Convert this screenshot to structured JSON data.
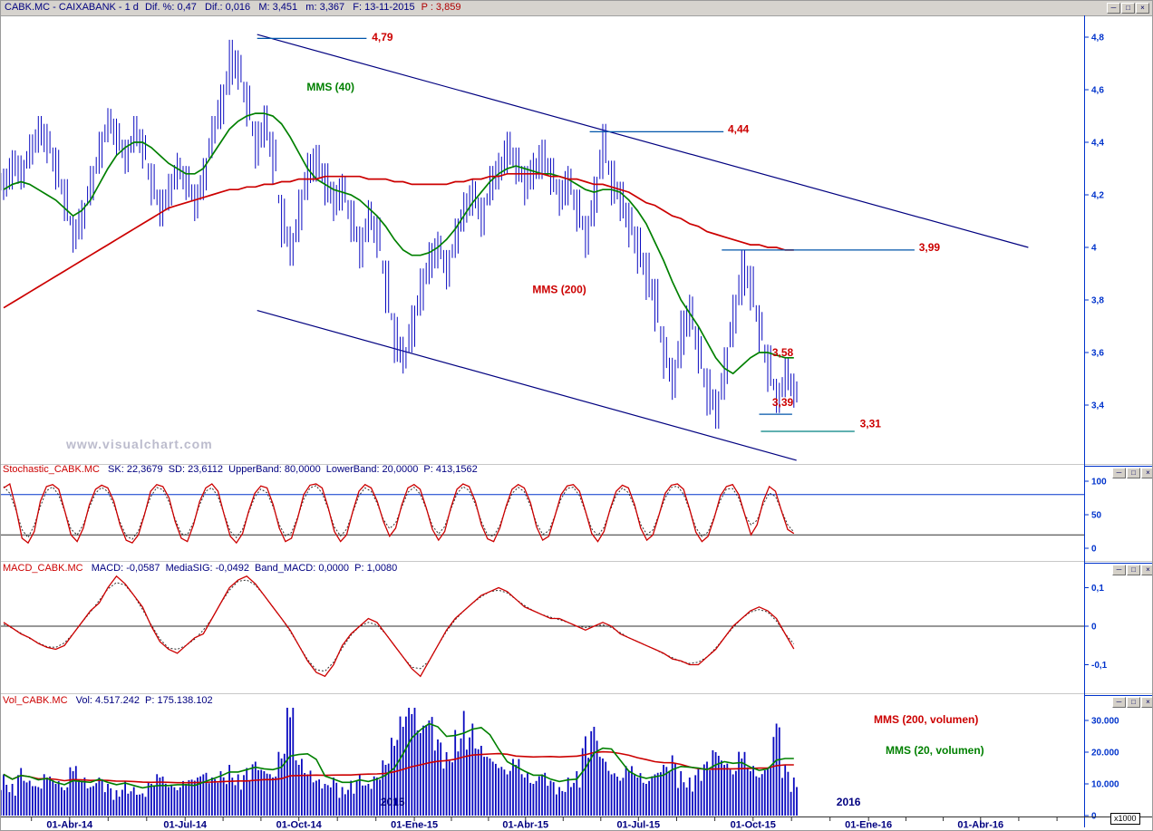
{
  "window": {
    "title_symbol": "CABK.MC - CAIXABANK -  1 d",
    "title_fields": "Dif. %: 0,47   Dif.: 0,016   M: 3,451   m: 3,367   F: 13-11-2015",
    "title_price": "P : 3,859",
    "icons": {
      "minimize": "─",
      "restore": "□",
      "close": "×"
    }
  },
  "watermark": "www.visualchart.com",
  "panels": {
    "stochastic": {
      "label": "Stochastic_CABK.MC",
      "values": "SK: 22,3679  SD: 23,6112  UpperBand: 80,0000  LowerBand: 20,0000  P: 413,1562"
    },
    "macd": {
      "label": "MACD_CABK.MC",
      "values": "MACD: -0,0587  MediaSIG: -0,0492  Band_MACD: 0,0000  P: 1,0080"
    },
    "volume": {
      "label": "Vol_CABK.MC",
      "values": "Vol: 4.517.242  P: 175.138.102",
      "legend_red": "MMS (200, volumen)",
      "legend_green": "MMS (20, volumen)"
    }
  },
  "xaxis": {
    "month_labels": [
      {
        "text": "01-Abr-14",
        "week": 7.6
      },
      {
        "text": "01-Jul-14",
        "week": 20.9
      },
      {
        "text": "01-Oct-14",
        "week": 34.0
      },
      {
        "text": "01-Ene-15",
        "week": 47.3
      },
      {
        "text": "01-Abr-15",
        "week": 60.1
      },
      {
        "text": "01-Jul-15",
        "week": 73.1
      },
      {
        "text": "01-Oct-15",
        "week": 86.3
      },
      {
        "text": "01-Ene-16",
        "week": 99.6
      },
      {
        "text": "01-Abr-16",
        "week": 112.5
      }
    ],
    "year_labels": [
      {
        "text": "2015",
        "week": 44.8
      },
      {
        "text": "2016",
        "week": 97.3
      }
    ],
    "scale_note": "x1000"
  },
  "colors": {
    "navy": "#000080",
    "scale_blue": "#0033cc",
    "bar_blue": "#0a0ac0",
    "red": "#cc0000",
    "green": "#008000",
    "teal": "#008080",
    "annot_line_blue": "#0055aa",
    "signal_dark": "#303030",
    "titlebar_bg": "#d6d3ce",
    "watermark_gray": "#bcbccd"
  },
  "chart_data": [
    {
      "type": "candlestick",
      "name": "CABK.MC daily price",
      "sampling": "weekly estimates [high, low, close]",
      "ylim": [
        3.25,
        4.85
      ],
      "yticks": [
        {
          "v": 4.8,
          "label": "4,8"
        },
        {
          "v": 4.6,
          "label": "4,6"
        },
        {
          "v": 4.4,
          "label": "4,4"
        },
        {
          "v": 4.2,
          "label": "4,2"
        },
        {
          "v": 4.0,
          "label": "4"
        },
        {
          "v": 3.8,
          "label": "3,8"
        },
        {
          "v": 3.6,
          "label": "3,6"
        },
        {
          "v": 3.4,
          "label": "3,4"
        }
      ],
      "bars_hlc": [
        [
          4.3,
          4.18,
          4.25
        ],
        [
          4.37,
          4.22,
          4.32
        ],
        [
          4.35,
          4.22,
          4.28
        ],
        [
          4.43,
          4.3,
          4.38
        ],
        [
          4.5,
          4.36,
          4.45
        ],
        [
          4.47,
          4.32,
          4.4
        ],
        [
          4.38,
          4.22,
          4.3
        ],
        [
          4.26,
          4.1,
          4.18
        ],
        [
          4.12,
          3.98,
          4.05
        ],
        [
          4.18,
          4.03,
          4.12
        ],
        [
          4.31,
          4.16,
          4.25
        ],
        [
          4.44,
          4.28,
          4.38
        ],
        [
          4.53,
          4.4,
          4.48
        ],
        [
          4.49,
          4.35,
          4.42
        ],
        [
          4.41,
          4.28,
          4.35
        ],
        [
          4.5,
          4.36,
          4.45
        ],
        [
          4.45,
          4.3,
          4.38
        ],
        [
          4.32,
          4.16,
          4.25
        ],
        [
          4.22,
          4.08,
          4.15
        ],
        [
          4.28,
          4.14,
          4.22
        ],
        [
          4.36,
          4.22,
          4.3
        ],
        [
          4.31,
          4.18,
          4.25
        ],
        [
          4.24,
          4.1,
          4.18
        ],
        [
          4.34,
          4.18,
          4.28
        ],
        [
          4.5,
          4.34,
          4.45
        ],
        [
          4.62,
          4.45,
          4.55
        ],
        [
          4.79,
          4.58,
          4.72
        ],
        [
          4.75,
          4.6,
          4.68
        ],
        [
          4.63,
          4.46,
          4.55
        ],
        [
          4.48,
          4.3,
          4.4
        ],
        [
          4.54,
          4.38,
          4.48
        ],
        [
          4.44,
          4.24,
          4.35
        ],
        [
          4.2,
          4.0,
          4.1
        ],
        [
          4.08,
          3.93,
          3.98
        ],
        [
          4.22,
          4.02,
          4.15
        ],
        [
          4.36,
          4.18,
          4.3
        ],
        [
          4.39,
          4.25,
          4.33
        ],
        [
          4.32,
          4.16,
          4.25
        ],
        [
          4.25,
          4.1,
          4.18
        ],
        [
          4.28,
          4.14,
          4.22
        ],
        [
          4.18,
          4.02,
          4.1
        ],
        [
          4.08,
          3.92,
          4.0
        ],
        [
          4.18,
          4.02,
          4.12
        ],
        [
          4.12,
          3.96,
          4.05
        ],
        [
          3.95,
          3.75,
          3.85
        ],
        [
          3.75,
          3.56,
          3.65
        ],
        [
          3.66,
          3.52,
          3.58
        ],
        [
          3.78,
          3.6,
          3.7
        ],
        [
          3.92,
          3.74,
          3.85
        ],
        [
          4.02,
          3.86,
          3.95
        ],
        [
          4.06,
          3.92,
          4.0
        ],
        [
          3.99,
          3.84,
          3.92
        ],
        [
          4.11,
          3.96,
          4.05
        ],
        [
          4.21,
          4.06,
          4.15
        ],
        [
          4.26,
          4.12,
          4.2
        ],
        [
          4.19,
          4.04,
          4.12
        ],
        [
          4.31,
          4.16,
          4.25
        ],
        [
          4.36,
          4.22,
          4.3
        ],
        [
          4.44,
          4.28,
          4.38
        ],
        [
          4.38,
          4.24,
          4.32
        ],
        [
          4.31,
          4.16,
          4.25
        ],
        [
          4.36,
          4.22,
          4.3
        ],
        [
          4.41,
          4.26,
          4.35
        ],
        [
          4.34,
          4.2,
          4.28
        ],
        [
          4.26,
          4.12,
          4.2
        ],
        [
          4.31,
          4.16,
          4.25
        ],
        [
          4.22,
          4.06,
          4.15
        ],
        [
          4.12,
          3.96,
          4.05
        ],
        [
          4.27,
          4.08,
          4.2
        ],
        [
          4.47,
          4.26,
          4.4
        ],
        [
          4.33,
          4.16,
          4.25
        ],
        [
          4.25,
          4.1,
          4.18
        ],
        [
          4.17,
          4.0,
          4.1
        ],
        [
          4.08,
          3.9,
          4.0
        ],
        [
          3.98,
          3.8,
          3.9
        ],
        [
          3.88,
          3.68,
          3.8
        ],
        [
          3.7,
          3.5,
          3.6
        ],
        [
          3.58,
          3.42,
          3.5
        ],
        [
          3.76,
          3.54,
          3.7
        ],
        [
          3.82,
          3.66,
          3.75
        ],
        [
          3.7,
          3.52,
          3.6
        ],
        [
          3.54,
          3.36,
          3.45
        ],
        [
          3.46,
          3.31,
          3.38
        ],
        [
          3.62,
          3.42,
          3.55
        ],
        [
          3.82,
          3.62,
          3.75
        ],
        [
          3.99,
          3.78,
          3.92
        ],
        [
          3.93,
          3.76,
          3.85
        ],
        [
          3.78,
          3.6,
          3.7
        ],
        [
          3.63,
          3.45,
          3.55
        ],
        [
          3.5,
          3.37,
          3.42
        ],
        [
          3.58,
          3.43,
          3.52
        ],
        [
          3.52,
          3.39,
          3.45
        ]
      ],
      "series": [
        {
          "name": "MMS (40)",
          "color": "green",
          "values": [
            4.22,
            4.24,
            4.25,
            4.24,
            4.22,
            4.2,
            4.18,
            4.15,
            4.12,
            4.14,
            4.18,
            4.24,
            4.3,
            4.35,
            4.38,
            4.4,
            4.4,
            4.38,
            4.35,
            4.32,
            4.3,
            4.28,
            4.28,
            4.3,
            4.35,
            4.4,
            4.45,
            4.48,
            4.5,
            4.51,
            4.51,
            4.5,
            4.47,
            4.42,
            4.36,
            4.3,
            4.26,
            4.24,
            4.22,
            4.21,
            4.2,
            4.18,
            4.15,
            4.12,
            4.08,
            4.03,
            3.99,
            3.97,
            3.97,
            3.98,
            4.0,
            4.03,
            4.07,
            4.12,
            4.17,
            4.21,
            4.25,
            4.28,
            4.3,
            4.31,
            4.3,
            4.29,
            4.28,
            4.28,
            4.27,
            4.26,
            4.24,
            4.22,
            4.21,
            4.22,
            4.22,
            4.21,
            4.18,
            4.14,
            4.09,
            4.02,
            3.95,
            3.87,
            3.8,
            3.75,
            3.7,
            3.64,
            3.58,
            3.54,
            3.52,
            3.55,
            3.58,
            3.6,
            3.6,
            3.59,
            3.58,
            3.58
          ]
        },
        {
          "name": "MMS (200)",
          "color": "red",
          "values": [
            3.77,
            3.79,
            3.81,
            3.83,
            3.85,
            3.87,
            3.89,
            3.91,
            3.93,
            3.95,
            3.97,
            3.99,
            4.01,
            4.03,
            4.05,
            4.07,
            4.09,
            4.11,
            4.13,
            4.15,
            4.16,
            4.17,
            4.18,
            4.19,
            4.2,
            4.21,
            4.22,
            4.22,
            4.23,
            4.23,
            4.24,
            4.24,
            4.25,
            4.25,
            4.26,
            4.26,
            4.26,
            4.27,
            4.27,
            4.27,
            4.27,
            4.27,
            4.26,
            4.26,
            4.26,
            4.25,
            4.25,
            4.24,
            4.24,
            4.24,
            4.24,
            4.24,
            4.25,
            4.25,
            4.26,
            4.26,
            4.27,
            4.27,
            4.28,
            4.28,
            4.28,
            4.28,
            4.28,
            4.27,
            4.27,
            4.26,
            4.26,
            4.25,
            4.24,
            4.24,
            4.23,
            4.22,
            4.21,
            4.19,
            4.17,
            4.16,
            4.14,
            4.12,
            4.11,
            4.09,
            4.08,
            4.06,
            4.05,
            4.04,
            4.03,
            4.02,
            4.01,
            4.01,
            4.0,
            4.0,
            3.99,
            3.99
          ]
        }
      ],
      "trendlines": [
        {
          "w1": 29.2,
          "p1": 4.81,
          "w2": 118.0,
          "p2": 4.0
        },
        {
          "w1": 29.2,
          "p1": 3.76,
          "w2": 91.3,
          "p2": 3.19
        }
      ],
      "annotations": [
        {
          "text": "4,79",
          "price": 4.8,
          "label_week": 42.4,
          "line": {
            "from": 29.2,
            "to": 41.8,
            "at": 4.795,
            "color": "annot_line_blue"
          }
        },
        {
          "text": "4,44",
          "price": 4.45,
          "label_week": 83.4,
          "line": {
            "from": 67.5,
            "to": 82.9,
            "at": 4.44,
            "color": "annot_line_blue"
          }
        },
        {
          "text": "3,99",
          "price": 4.0,
          "label_week": 105.4,
          "line": {
            "from": 82.7,
            "to": 104.9,
            "at": 3.99,
            "color": "annot_line_blue"
          }
        },
        {
          "text": "3,58",
          "price": 3.6,
          "label_week": 88.5
        },
        {
          "text": "3,39",
          "price": 3.41,
          "label_week": 88.5,
          "line": {
            "from": 87.0,
            "to": 90.8,
            "at": 3.365,
            "color": "annot_line_blue"
          }
        },
        {
          "text": "3,31",
          "price": 3.33,
          "label_week": 98.6,
          "line": {
            "from": 87.2,
            "to": 98.0,
            "at": 3.3,
            "color": "teal"
          }
        }
      ],
      "series_labels": [
        {
          "text": "MMS (40)",
          "week": 34.9,
          "price": 4.61,
          "color": "green"
        },
        {
          "text": "MMS (200)",
          "week": 60.9,
          "price": 3.84,
          "color": "red"
        }
      ]
    },
    {
      "type": "line",
      "name": "Stochastic SK",
      "ylim": [
        0,
        100
      ],
      "yticks": [
        {
          "v": 100,
          "label": "100"
        },
        {
          "v": 50,
          "label": "50"
        },
        {
          "v": 0,
          "label": "0"
        }
      ],
      "upper_band": 80,
      "lower_band": 20,
      "values": [
        90,
        96,
        60,
        15,
        8,
        25,
        70,
        92,
        95,
        88,
        55,
        20,
        10,
        30,
        65,
        88,
        94,
        90,
        70,
        35,
        12,
        8,
        20,
        50,
        85,
        95,
        92,
        75,
        40,
        15,
        10,
        35,
        70,
        90,
        96,
        85,
        50,
        18,
        8,
        22,
        55,
        82,
        93,
        90,
        65,
        30,
        10,
        15,
        45,
        80,
        94,
        96,
        90,
        60,
        25,
        10,
        20,
        55,
        85,
        95,
        90,
        70,
        40,
        18,
        30,
        65,
        90,
        95,
        88,
        60,
        28,
        12,
        25,
        60,
        88,
        96,
        92,
        70,
        35,
        14,
        10,
        30,
        62,
        88,
        95,
        90,
        68,
        32,
        12,
        18,
        48,
        80,
        93,
        95,
        85,
        55,
        22,
        10,
        25,
        58,
        85,
        94,
        90,
        65,
        30,
        12,
        20,
        50,
        82,
        94,
        96,
        88,
        58,
        24,
        10,
        18,
        45,
        78,
        92,
        95,
        80,
        50,
        20,
        35,
        70,
        92,
        85,
        55,
        28,
        22
      ],
      "signal": "SD drawn as smoothed SK (dotted)"
    },
    {
      "type": "line",
      "name": "MACD",
      "ylim": [
        -0.15,
        0.15
      ],
      "yticks": [
        {
          "v": 0.1,
          "label": "0,1"
        },
        {
          "v": 0,
          "label": "0"
        },
        {
          "v": -0.1,
          "label": "-0,1"
        }
      ],
      "values": [
        0.01,
        -0.005,
        -0.02,
        -0.03,
        -0.045,
        -0.055,
        -0.06,
        -0.05,
        -0.02,
        0.01,
        0.04,
        0.06,
        0.1,
        0.13,
        0.11,
        0.08,
        0.05,
        0.0,
        -0.04,
        -0.06,
        -0.07,
        -0.05,
        -0.03,
        -0.02,
        0.02,
        0.06,
        0.1,
        0.12,
        0.13,
        0.11,
        0.08,
        0.05,
        0.02,
        -0.01,
        -0.05,
        -0.09,
        -0.12,
        -0.13,
        -0.1,
        -0.05,
        -0.02,
        0.0,
        0.02,
        0.01,
        -0.02,
        -0.05,
        -0.08,
        -0.11,
        -0.13,
        -0.09,
        -0.05,
        -0.01,
        0.02,
        0.04,
        0.06,
        0.08,
        0.09,
        0.1,
        0.09,
        0.07,
        0.05,
        0.04,
        0.03,
        0.02,
        0.02,
        0.01,
        0.0,
        -0.01,
        0.0,
        0.01,
        0.0,
        -0.02,
        -0.03,
        -0.04,
        -0.05,
        -0.06,
        -0.07,
        -0.085,
        -0.09,
        -0.1,
        -0.1,
        -0.08,
        -0.06,
        -0.03,
        0.0,
        0.02,
        0.04,
        0.05,
        0.04,
        0.02,
        -0.02,
        -0.059
      ],
      "signal": "MediaSIG drawn as smoothed MACD (dotted)"
    },
    {
      "type": "bar",
      "name": "Volume (thousands)",
      "unit": "x1000",
      "yticks": [
        {
          "v": 30,
          "label": "30.000"
        },
        {
          "v": 20,
          "label": "20.000"
        },
        {
          "v": 10,
          "label": "10.000"
        },
        {
          "v": 0,
          "label": "0"
        }
      ],
      "values": [
        13,
        10,
        15,
        11,
        9,
        12,
        10,
        8,
        14,
        11,
        9,
        12,
        10,
        8,
        11,
        9,
        7,
        10,
        12,
        9,
        8,
        10,
        11,
        13,
        12,
        14,
        16,
        13,
        15,
        17,
        14,
        12,
        18,
        31,
        16,
        13,
        11,
        10,
        12,
        9,
        11,
        13,
        10,
        12,
        16,
        22,
        28,
        32,
        26,
        30,
        24,
        20,
        27,
        33,
        29,
        22,
        18,
        15,
        13,
        16,
        12,
        10,
        13,
        11,
        9,
        12,
        14,
        25,
        28,
        18,
        13,
        11,
        14,
        12,
        10,
        13,
        16,
        19,
        14,
        12,
        15,
        17,
        20,
        16,
        13,
        18,
        14,
        12,
        15,
        29,
        16,
        12
      ],
      "ma_short_window": 4,
      "ma_long_window": 26
    }
  ]
}
